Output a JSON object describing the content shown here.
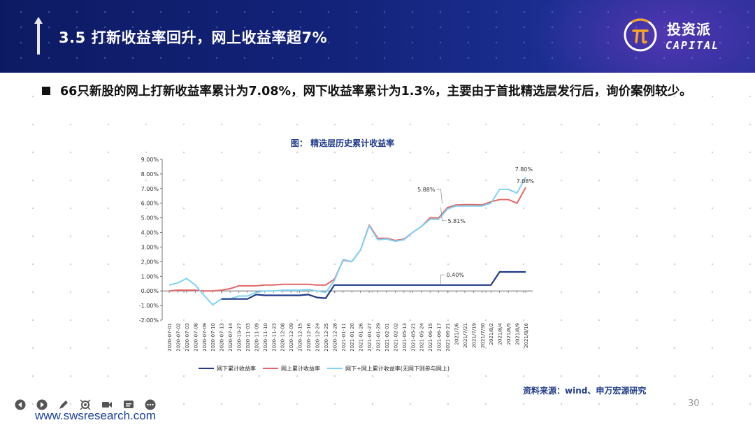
{
  "header": {
    "title": "3.5 打新收益率回升，网上收益率超7%",
    "logo_cn": "投资派",
    "logo_en": "CAPITAL",
    "colors": {
      "bg": "#13237a",
      "accent": "#f5a623"
    }
  },
  "bullet": {
    "text": "66只新股的网上打新收益率累计为7.08%，网下收益率累计为1.3%，主要由于首批精选层发行后，询价案例较少。"
  },
  "chart_title": "图：  精选层历史累计收益率",
  "source": "资料来源：wind、申万宏源研究",
  "page_number": "30",
  "website": "www.swsresearch.com",
  "toolbar": {
    "icons": [
      "prev-icon",
      "next-icon",
      "pen-icon",
      "pointer-icon",
      "video-icon",
      "subtitle-icon",
      "more-icon"
    ]
  },
  "chart_data": {
    "type": "line",
    "title": "",
    "xlabel": "",
    "ylabel": "",
    "ylim": [
      -2,
      9
    ],
    "y_ticks": [
      "-2.00%",
      "-1.00%",
      "0.00%",
      "1.00%",
      "2.00%",
      "3.00%",
      "4.00%",
      "5.00%",
      "6.00%",
      "7.00%",
      "8.00%",
      "9.00%"
    ],
    "legend_position": "bottom",
    "grid": false,
    "x": [
      "2020-07-01",
      "2020-07-02",
      "2020-07-03",
      "2020-07-08",
      "2020-07-09",
      "2020-07-10",
      "2020-07-13",
      "2020-07-14",
      "2020-10-27",
      "2020-11-03",
      "2020-11-09",
      "2020-11-10",
      "2020-11-23",
      "2020-12-08",
      "2020-12-09",
      "2020-12-15",
      "2020-12-16",
      "2020-12-24",
      "2020-12-25",
      "2020-12-28",
      "2021-01-11",
      "2021-01-20",
      "2021-01-26",
      "2021-01-27",
      "2021-01-29",
      "2021-02-01",
      "2021-02-02",
      "2021-05-13",
      "2021-05-21",
      "2021-05-24",
      "2021-06-15",
      "2021-06-17",
      "2021-06-21",
      "2021/7/6",
      "2021/7/21",
      "2021/7/19",
      "2021/7/30",
      "2021/8/2",
      "2021/8/4",
      "2021/8/5",
      "2021/8/9",
      "2021/8/16"
    ],
    "series": [
      {
        "name": "网下累计收益率",
        "color": "#1f3b8a",
        "values": [
          null,
          null,
          null,
          null,
          null,
          null,
          -0.55,
          -0.55,
          -0.55,
          -0.55,
          -0.25,
          -0.3,
          -0.3,
          -0.3,
          -0.3,
          -0.3,
          -0.25,
          -0.45,
          -0.5,
          0.4,
          0.4,
          0.4,
          0.4,
          0.4,
          0.4,
          0.4,
          0.4,
          0.4,
          0.4,
          0.4,
          0.4,
          0.4,
          0.4,
          0.4,
          0.4,
          0.4,
          0.4,
          0.4,
          1.3,
          1.3,
          1.3,
          1.3
        ]
      },
      {
        "name": "网上累计收益率",
        "color": "#e06666",
        "values": [
          0.0,
          0.05,
          0.05,
          0.05,
          0.0,
          0.0,
          0.05,
          0.15,
          0.35,
          0.35,
          0.35,
          0.4,
          0.4,
          0.45,
          0.45,
          0.45,
          0.45,
          0.4,
          0.4,
          0.8,
          2.1,
          2.0,
          2.8,
          4.5,
          3.6,
          3.6,
          3.45,
          3.55,
          4.0,
          4.4,
          5.0,
          5.0,
          5.7,
          5.88,
          5.9,
          5.9,
          5.88,
          6.1,
          6.25,
          6.25,
          6.0,
          7.08
        ]
      },
      {
        "name": "网下+网上累计收益率(无网下则参与网上)",
        "color": "#7fd3f5",
        "values": [
          0.4,
          0.55,
          0.85,
          0.4,
          -0.3,
          -0.95,
          -0.55,
          -0.55,
          -0.35,
          -0.35,
          -0.1,
          0.0,
          0.0,
          0.05,
          0.05,
          0.05,
          0.1,
          0.0,
          -0.1,
          0.7,
          2.15,
          2.0,
          2.8,
          4.45,
          3.5,
          3.55,
          3.4,
          3.5,
          4.0,
          4.4,
          4.9,
          4.9,
          5.6,
          5.81,
          5.81,
          5.81,
          5.81,
          6.0,
          6.95,
          6.95,
          6.7,
          7.8
        ]
      }
    ],
    "annotations": [
      "7.80%",
      "7.08%",
      "5.88%",
      "5.81%",
      "0.40%"
    ]
  }
}
